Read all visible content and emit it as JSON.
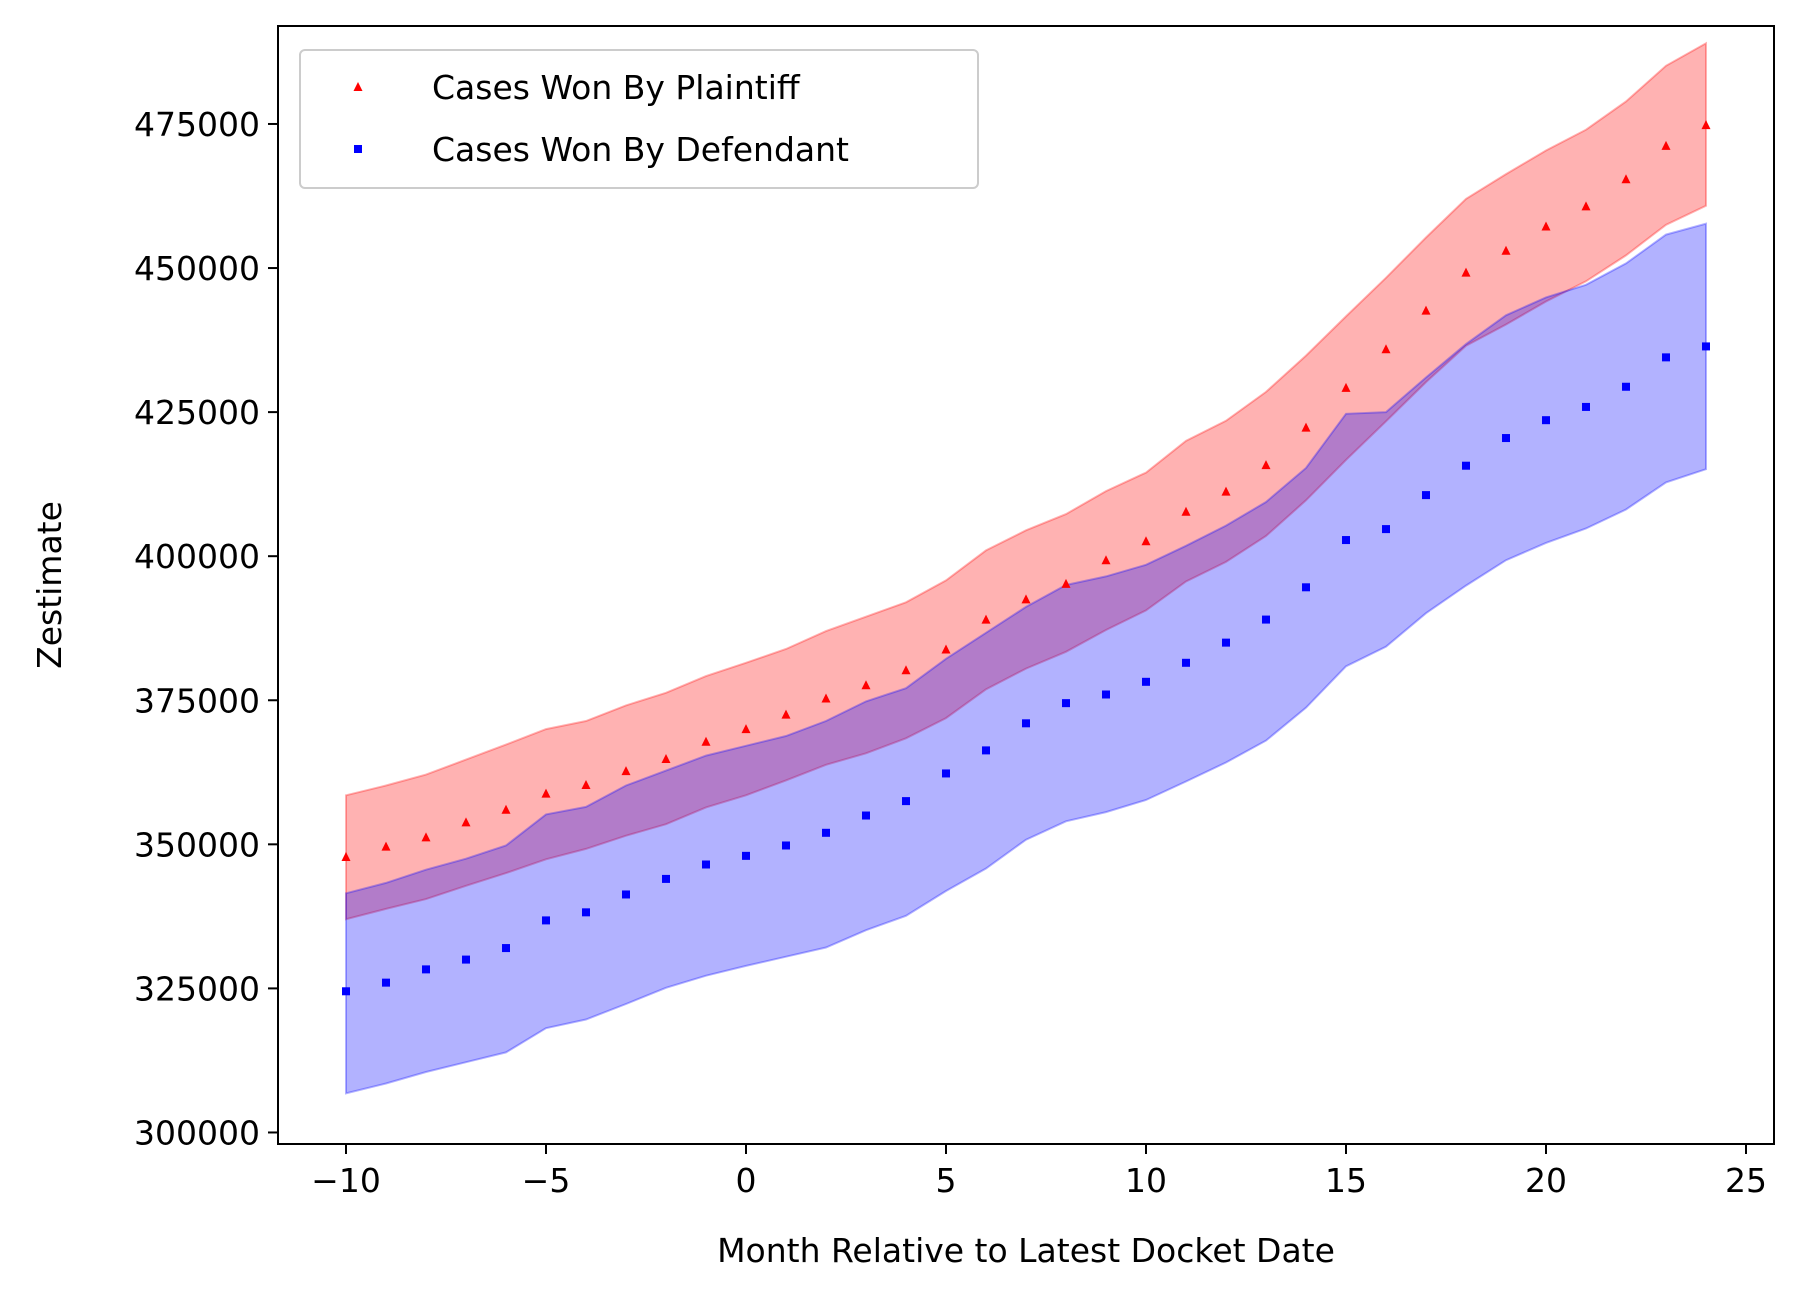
{
  "chart_data": {
    "type": "scatter",
    "title": "",
    "xlabel": "Month Relative to Latest Docket Date",
    "ylabel": "Zestimate",
    "xlim": [
      -11.7,
      25.7
    ],
    "ylim": [
      298000,
      492000
    ],
    "xticks": [
      -10,
      -5,
      0,
      5,
      10,
      15,
      20,
      25
    ],
    "xtick_labels": [
      "−10",
      "−5",
      "0",
      "5",
      "10",
      "15",
      "20",
      "25"
    ],
    "yticks": [
      300000,
      325000,
      350000,
      375000,
      400000,
      425000,
      450000,
      475000
    ],
    "ytick_labels": [
      "300000",
      "325000",
      "350000",
      "375000",
      "400000",
      "425000",
      "450000",
      "475000"
    ],
    "grid": false,
    "legend_position": "top-left",
    "x": [
      -10,
      -9,
      -8,
      -7,
      -6,
      -5,
      -4,
      -3,
      -2,
      -1,
      0,
      1,
      2,
      3,
      4,
      5,
      6,
      7,
      8,
      9,
      10,
      11,
      12,
      13,
      14,
      15,
      16,
      17,
      18,
      19,
      20,
      21,
      22,
      23,
      24
    ],
    "series": [
      {
        "name": "Cases Won By Plaintiff",
        "color": "#ff0000",
        "band_color": "#ff0000",
        "marker": "triangle",
        "values": [
          347800,
          349600,
          351200,
          353800,
          356000,
          358800,
          360300,
          362700,
          364800,
          367800,
          370000,
          372500,
          375300,
          377600,
          380200,
          383800,
          389000,
          392500,
          395200,
          399300,
          402600,
          407700,
          411200,
          415800,
          422300,
          429200,
          435900,
          442600,
          449200,
          453000,
          457200,
          460700,
          465400,
          471200,
          474800
        ],
        "upper": [
          358500,
          360200,
          362100,
          364700,
          367300,
          370000,
          371400,
          374100,
          376300,
          379200,
          381500,
          383900,
          387000,
          389500,
          392000,
          395800,
          401000,
          404500,
          407300,
          411300,
          414500,
          420000,
          423500,
          428500,
          434800,
          441600,
          448300,
          455300,
          462000,
          466300,
          470400,
          474000,
          478900,
          485100,
          489000
        ],
        "lower": [
          337000,
          338800,
          340500,
          342800,
          345000,
          347400,
          349200,
          351500,
          353500,
          356400,
          358500,
          361100,
          363800,
          365800,
          368400,
          371900,
          376900,
          380500,
          383400,
          387200,
          390600,
          395600,
          399000,
          403500,
          409700,
          416700,
          423400,
          430200,
          436500,
          440200,
          444200,
          447700,
          452200,
          457500,
          460800
        ]
      },
      {
        "name": "Cases Won By Defendant",
        "color": "#0000ff",
        "band_color": "#0000ff",
        "marker": "square",
        "values": [
          324500,
          326000,
          328300,
          330000,
          332000,
          336800,
          338200,
          341300,
          344000,
          346500,
          348000,
          349800,
          352000,
          355000,
          357500,
          362300,
          366300,
          371000,
          374500,
          376000,
          378200,
          381500,
          385000,
          389000,
          394600,
          402800,
          404700,
          410600,
          415700,
          420500,
          423600,
          425900,
          429400,
          434500,
          436400
        ],
        "upper": [
          341500,
          343300,
          345600,
          347500,
          349800,
          355200,
          356500,
          360200,
          362800,
          365400,
          367100,
          368800,
          371400,
          374800,
          377100,
          382200,
          386700,
          391200,
          395000,
          396500,
          398500,
          401800,
          405300,
          409400,
          415300,
          424700,
          425000,
          431000,
          436800,
          441800,
          444900,
          447100,
          450800,
          455800,
          457700
        ],
        "lower": [
          306800,
          308500,
          310500,
          312200,
          313900,
          318100,
          319600,
          322300,
          325100,
          327200,
          328900,
          330500,
          332100,
          335100,
          337600,
          341900,
          345800,
          350800,
          354000,
          355600,
          357700,
          360900,
          364200,
          368000,
          373700,
          380900,
          384300,
          390100,
          394900,
          399300,
          402300,
          404800,
          408100,
          412800,
          415100
        ]
      }
    ]
  }
}
